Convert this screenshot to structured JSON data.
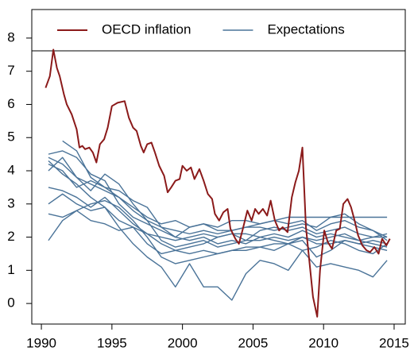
{
  "chart_data": {
    "type": "line",
    "x": [
      1990.5,
      1991.5,
      1992.5,
      1993.5,
      1994.5,
      1995.5,
      1996.5,
      1997.5,
      1998.5,
      1999.5,
      2000.5,
      2001.5,
      2002.5,
      2003.5,
      2004.5,
      2005.5,
      2006.5,
      2007.5,
      2008.5,
      2009.5,
      2010.5,
      2011.5,
      2012.5,
      2013.5,
      2014.5
    ],
    "series": [
      {
        "name": "OECD inflation",
        "color": "#8b1a1a",
        "x": [
          1990.3,
          1990.6,
          1990.85,
          1991.1,
          1991.3,
          1991.6,
          1991.8,
          1992.15,
          1992.5,
          1992.7,
          1992.9,
          1993.1,
          1993.4,
          1993.65,
          1993.9,
          1994.15,
          1994.45,
          1994.7,
          1995.0,
          1995.4,
          1995.9,
          1996.2,
          1996.5,
          1996.75,
          1997.05,
          1997.25,
          1997.5,
          1997.8,
          1998.05,
          1998.35,
          1998.7,
          1998.95,
          1999.2,
          1999.5,
          1999.8,
          2000.0,
          2000.3,
          2000.6,
          2000.85,
          2001.2,
          2001.5,
          2001.8,
          2002.1,
          2002.3,
          2002.6,
          2002.9,
          2003.2,
          2003.4,
          2003.75,
          2004.0,
          2004.25,
          2004.6,
          2004.9,
          2005.15,
          2005.4,
          2005.7,
          2006.0,
          2006.25,
          2006.55,
          2006.85,
          2007.1,
          2007.45,
          2007.75,
          2008.0,
          2008.25,
          2008.5,
          2008.75,
          2009.0,
          2009.25,
          2009.55,
          2009.75,
          2010.05,
          2010.3,
          2010.6,
          2010.9,
          2011.15,
          2011.4,
          2011.7,
          2011.95,
          2012.2,
          2012.45,
          2012.75,
          2013.05,
          2013.3,
          2013.6,
          2013.9,
          2014.15,
          2014.45,
          2014.7
        ],
        "values": [
          6.5,
          6.85,
          7.65,
          7.1,
          6.85,
          6.3,
          6.0,
          5.7,
          5.25,
          4.7,
          4.75,
          4.65,
          4.7,
          4.55,
          4.25,
          4.8,
          4.95,
          5.3,
          5.95,
          6.05,
          6.1,
          5.6,
          5.3,
          5.2,
          4.75,
          4.55,
          4.8,
          4.85,
          4.55,
          4.15,
          3.85,
          3.35,
          3.5,
          3.7,
          3.75,
          4.15,
          4.0,
          4.1,
          3.75,
          4.05,
          3.7,
          3.3,
          3.15,
          2.7,
          2.5,
          2.75,
          2.85,
          2.25,
          1.95,
          1.8,
          2.2,
          2.8,
          2.5,
          2.85,
          2.7,
          2.85,
          2.65,
          3.1,
          2.5,
          2.2,
          2.3,
          2.15,
          3.2,
          3.65,
          4.0,
          4.7,
          2.3,
          1.25,
          0.2,
          -0.4,
          1.0,
          2.2,
          1.85,
          1.65,
          2.2,
          2.25,
          3.0,
          3.15,
          2.9,
          2.5,
          2.05,
          1.75,
          1.6,
          1.55,
          1.7,
          1.5,
          1.95,
          1.75,
          1.95
        ]
      },
      {
        "name": "Expectations",
        "color": "#4a7398",
        "values": [
          4.5,
          4.6,
          4.4,
          3.9,
          3.7,
          3.0,
          2.6,
          2.4,
          2.2,
          2.0,
          2.3,
          2.4,
          2.3,
          2.5,
          2.5,
          2.4,
          2.5,
          2.6,
          2.6,
          2.6,
          2.6,
          2.6,
          2.6,
          2.6,
          2.6
        ]
      },
      {
        "name": "Expectations",
        "color": "#4a7398",
        "values": [
          4.4,
          4.2,
          3.8,
          3.6,
          3.4,
          3.2,
          2.8,
          2.5,
          2.3,
          2.2,
          2.1,
          2.2,
          2.1,
          2.2,
          2.3,
          2.4,
          2.5,
          2.4,
          2.5,
          2.2,
          2.4,
          2.5,
          2.3,
          2.2,
          2.0
        ]
      },
      {
        "name": "Expectations",
        "color": "#4a7398",
        "values": [
          null,
          4.9,
          4.6,
          3.8,
          3.5,
          3.2,
          2.9,
          2.6,
          2.4,
          2.5,
          2.3,
          2.4,
          2.2,
          2.2,
          2.3,
          2.3,
          2.2,
          2.3,
          2.4,
          2.3,
          2.6,
          2.7,
          2.4,
          2.2,
          1.9
        ]
      },
      {
        "name": "Expectations",
        "color": "#4a7398",
        "values": [
          4.0,
          4.4,
          3.8,
          3.4,
          3.9,
          3.6,
          3.0,
          2.5,
          1.9,
          1.7,
          1.8,
          1.9,
          1.7,
          1.8,
          1.9,
          1.9,
          2.0,
          1.9,
          2.0,
          1.9,
          2.0,
          2.1,
          1.9,
          1.8,
          1.7
        ]
      },
      {
        "name": "Expectations",
        "color": "#4a7398",
        "values": [
          3.0,
          3.3,
          3.0,
          2.8,
          2.9,
          2.5,
          2.3,
          1.8,
          1.5,
          1.6,
          1.5,
          1.6,
          1.5,
          1.6,
          1.6,
          1.7,
          1.6,
          1.8,
          1.6,
          1.7,
          1.9,
          1.8,
          1.6,
          1.5,
          1.8
        ]
      },
      {
        "name": "Expectations",
        "color": "#4a7398",
        "values": [
          2.7,
          2.6,
          2.8,
          2.5,
          2.4,
          2.2,
          2.3,
          2.1,
          2.0,
          1.9,
          2.0,
          2.1,
          2.0,
          2.1,
          2.1,
          2.0,
          2.1,
          2.0,
          2.2,
          2.0,
          2.1,
          2.0,
          1.9,
          2.0,
          2.0
        ]
      },
      {
        "name": "Expectations",
        "color": "#4a7398",
        "values": [
          1.9,
          2.5,
          2.8,
          3.0,
          3.1,
          2.9,
          2.5,
          2.0,
          1.4,
          1.2,
          1.3,
          1.4,
          1.5,
          1.6,
          1.7,
          1.7,
          1.8,
          1.8,
          1.9,
          1.4,
          1.6,
          1.9,
          1.8,
          1.7,
          1.6
        ]
      },
      {
        "name": "Expectations",
        "color": "#4a7398",
        "values": [
          4.3,
          3.9,
          3.6,
          3.2,
          2.9,
          2.3,
          1.8,
          1.4,
          1.1,
          0.5,
          1.2,
          0.5,
          0.5,
          0.1,
          0.9,
          1.3,
          1.2,
          1.0,
          1.6,
          1.1,
          1.2,
          1.1,
          1.0,
          0.8,
          1.3
        ]
      },
      {
        "name": "Expectations",
        "color": "#4a7398",
        "values": [
          4.2,
          4.0,
          3.5,
          3.7,
          3.5,
          3.4,
          3.1,
          2.9,
          2.3,
          2.0,
          1.9,
          2.0,
          1.8,
          1.9,
          1.8,
          2.0,
          1.9,
          1.8,
          2.0,
          1.8,
          1.8,
          1.9,
          1.8,
          1.9,
          1.8
        ]
      },
      {
        "name": "Expectations",
        "color": "#4a7398",
        "values": [
          3.5,
          3.4,
          3.2,
          2.9,
          3.2,
          2.8,
          2.4,
          2.1,
          1.8,
          1.6,
          1.7,
          1.8,
          2.0,
          2.1,
          1.9,
          2.2,
          2.3,
          2.2,
          2.3,
          2.1,
          2.2,
          2.3,
          2.1,
          2.0,
          2.1
        ]
      }
    ],
    "xlim": [
      1989.32,
      2015.79
    ],
    "ylim": [
      -0.62,
      8.86
    ],
    "xticks": [
      1990,
      1995,
      2000,
      2005,
      2010,
      2015
    ],
    "yticks": [
      0,
      1,
      2,
      3,
      4,
      5,
      6,
      7,
      8
    ],
    "legend": "top"
  }
}
